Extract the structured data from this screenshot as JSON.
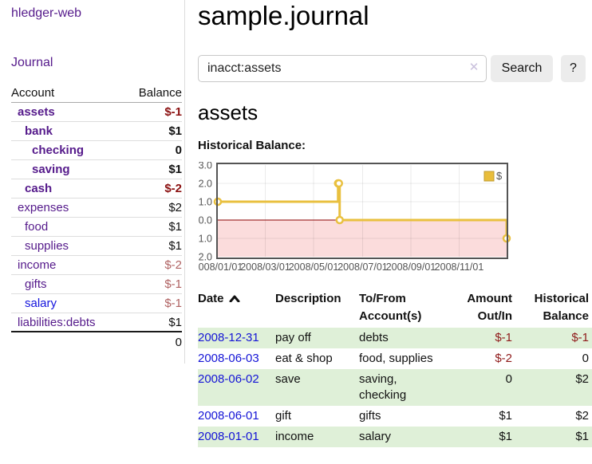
{
  "app": {
    "brand": "hledger-web",
    "nav_journal": "Journal"
  },
  "sidebar": {
    "columns": {
      "account": "Account",
      "balance": "Balance"
    },
    "accounts": [
      {
        "name": "assets",
        "balance": "$-1",
        "depth": 0,
        "bold": true,
        "neg": "strong"
      },
      {
        "name": "bank",
        "balance": "$1",
        "depth": 1,
        "bold": true,
        "neg": "none"
      },
      {
        "name": "checking",
        "balance": "0",
        "depth": 2,
        "bold": true,
        "neg": "none"
      },
      {
        "name": "saving",
        "balance": "$1",
        "depth": 2,
        "bold": true,
        "neg": "none"
      },
      {
        "name": "cash",
        "balance": "$-2",
        "depth": 1,
        "bold": true,
        "neg": "strong"
      },
      {
        "name": "expenses",
        "balance": "$2",
        "depth": 0,
        "bold": false,
        "neg": "none"
      },
      {
        "name": "food",
        "balance": "$1",
        "depth": 1,
        "bold": false,
        "neg": "none"
      },
      {
        "name": "supplies",
        "balance": "$1",
        "depth": 1,
        "bold": false,
        "neg": "none"
      },
      {
        "name": "income",
        "balance": "$-2",
        "depth": 0,
        "bold": false,
        "neg": "soft"
      },
      {
        "name": "gifts",
        "balance": "$-1",
        "depth": 1,
        "bold": false,
        "neg": "soft"
      },
      {
        "name": "salary",
        "balance": "$-1",
        "depth": 1,
        "bold": false,
        "neg": "soft",
        "link": "blue"
      },
      {
        "name": "liabilities:debts",
        "balance": "$1",
        "depth": 0,
        "bold": false,
        "neg": "none",
        "last": true
      }
    ],
    "total": "0"
  },
  "header": {
    "title": "sample.journal"
  },
  "search": {
    "value": "inacct:assets",
    "clear_label": "✕",
    "button": "Search",
    "help": "?"
  },
  "account_page": {
    "heading": "assets"
  },
  "chart_data": {
    "type": "line",
    "step": true,
    "title": "Historical Balance:",
    "legend": {
      "label": "$",
      "position": "top-right"
    },
    "series": [
      {
        "name": "$",
        "color": "#e9c03f",
        "points": [
          {
            "date": "2008-01-01",
            "day": 0,
            "value": 1
          },
          {
            "date": "2008-06-01",
            "day": 152,
            "value": 2
          },
          {
            "date": "2008-06-02",
            "day": 153,
            "value": 2
          },
          {
            "date": "2008-06-03",
            "day": 154,
            "value": 0
          },
          {
            "date": "2008-12-31",
            "day": 365,
            "value": -1
          }
        ]
      }
    ],
    "x_ticks": [
      {
        "label": "2008/01/01",
        "day": 0
      },
      {
        "label": "2008/03/01",
        "day": 60
      },
      {
        "label": "2008/05/01",
        "day": 121
      },
      {
        "label": "2008/07/01",
        "day": 183
      },
      {
        "label": "2008/09/01",
        "day": 244
      },
      {
        "label": "2008/11/01",
        "day": 305
      }
    ],
    "y_ticks": [
      3.0,
      2.0,
      1.0,
      0.0,
      -1.0,
      -2.0
    ],
    "ylim": [
      -2,
      3
    ],
    "xlim_days": [
      0,
      365
    ],
    "grid": true,
    "negative_region_color": "#fbdcdc",
    "zero_line_color": "#8b0000",
    "border_color": "#545454",
    "tick_label_color": "#545454"
  },
  "register": {
    "headers": {
      "date": "Date",
      "description": "Description",
      "accounts_line1": "To/From",
      "accounts_line2": "Account(s)",
      "amount_line1": "Amount",
      "amount_line2": "Out/In",
      "balance_line1": "Historical",
      "balance_line2": "Balance"
    },
    "sort": {
      "column": "date",
      "direction": "asc"
    },
    "rows": [
      {
        "date": "2008-12-31",
        "description": "pay off",
        "accounts": "debts",
        "amount": "$-1",
        "balance": "$-1",
        "amount_neg": true,
        "balance_neg": true,
        "striped": true
      },
      {
        "date": "2008-06-03",
        "description": "eat & shop",
        "accounts": "food, supplies",
        "amount": "$-2",
        "balance": "0",
        "amount_neg": true,
        "balance_neg": false,
        "striped": false
      },
      {
        "date": "2008-06-02",
        "description": "save",
        "accounts": "saving, checking",
        "amount": "0",
        "balance": "$2",
        "amount_neg": false,
        "balance_neg": false,
        "striped": true
      },
      {
        "date": "2008-06-01",
        "description": "gift",
        "accounts": "gifts",
        "amount": "$1",
        "balance": "$2",
        "amount_neg": false,
        "balance_neg": false,
        "striped": false
      },
      {
        "date": "2008-01-01",
        "description": "income",
        "accounts": "salary",
        "amount": "$1",
        "balance": "$1",
        "amount_neg": false,
        "balance_neg": false,
        "striped": true
      }
    ]
  }
}
